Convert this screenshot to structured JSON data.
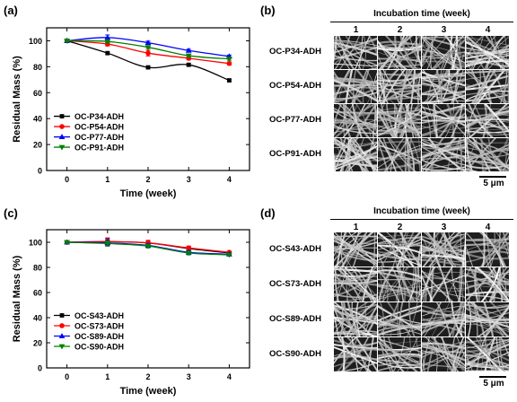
{
  "panels": {
    "a": "(a)",
    "b": "(b)",
    "c": "(c)",
    "d": "(d)"
  },
  "chart_data": [
    {
      "id": "a",
      "type": "line",
      "xlabel": "Time (week)",
      "ylabel": "Residual Mass (%)",
      "xlim": [
        -0.5,
        4.5
      ],
      "ylim": [
        0,
        110
      ],
      "xticks": [
        0,
        1,
        2,
        3,
        4
      ],
      "yticks": [
        0,
        20,
        40,
        60,
        80,
        100
      ],
      "legend_position": "lower-left",
      "series": [
        {
          "name": "OC-P34-ADH",
          "color": "#000000",
          "marker": "square",
          "x": [
            0,
            1,
            2,
            3,
            4
          ],
          "y": [
            100,
            90.5,
            79.5,
            81.5,
            69.5
          ],
          "err": [
            0.8,
            0.8,
            0.8,
            1.0,
            0.8
          ]
        },
        {
          "name": "OC-P54-ADH",
          "color": "#ff0000",
          "marker": "circle",
          "x": [
            0,
            1,
            2,
            3,
            4
          ],
          "y": [
            100,
            97.5,
            90.5,
            86.5,
            82.5
          ],
          "err": [
            0.8,
            1.5,
            2.2,
            1.2,
            1.2
          ]
        },
        {
          "name": "OC-P77-ADH",
          "color": "#0000ff",
          "marker": "triangle",
          "x": [
            0,
            1,
            2,
            3,
            4
          ],
          "y": [
            100,
            102.5,
            98.5,
            92.5,
            88.0
          ],
          "err": [
            0.8,
            2.0,
            1.2,
            1.0,
            1.0
          ]
        },
        {
          "name": "OC-P91-ADH",
          "color": "#008000",
          "marker": "tri-down",
          "x": [
            0,
            1,
            2,
            3,
            4
          ],
          "y": [
            100,
            99.5,
            95.0,
            88.5,
            86.0
          ],
          "err": [
            0.8,
            1.0,
            1.0,
            1.0,
            1.0
          ]
        }
      ]
    },
    {
      "id": "c",
      "type": "line",
      "xlabel": "Time (week)",
      "ylabel": "Residual Mass (%)",
      "xlim": [
        -0.5,
        4.5
      ],
      "ylim": [
        0,
        110
      ],
      "xticks": [
        0,
        1,
        2,
        3,
        4
      ],
      "yticks": [
        0,
        20,
        40,
        60,
        80,
        100
      ],
      "legend_position": "lower-left",
      "series": [
        {
          "name": "OC-S43-ADH",
          "color": "#000000",
          "marker": "square",
          "x": [
            0,
            1,
            2,
            3,
            4
          ],
          "y": [
            100,
            100.5,
            99.5,
            95.0,
            91.5
          ],
          "err": [
            0.8,
            2.5,
            2.0,
            1.5,
            1.0
          ]
        },
        {
          "name": "OC-S73-ADH",
          "color": "#ff0000",
          "marker": "circle",
          "x": [
            0,
            1,
            2,
            3,
            4
          ],
          "y": [
            100,
            100.5,
            99.5,
            95.5,
            92.0
          ],
          "err": [
            0.8,
            3.0,
            2.0,
            1.5,
            1.0
          ]
        },
        {
          "name": "OC-S89-ADH",
          "color": "#0000ff",
          "marker": "triangle",
          "x": [
            0,
            1,
            2,
            3,
            4
          ],
          "y": [
            100,
            99.5,
            97.5,
            92.0,
            90.5
          ],
          "err": [
            0.8,
            2.5,
            1.5,
            1.5,
            1.0
          ]
        },
        {
          "name": "OC-S90-ADH",
          "color": "#008000",
          "marker": "tri-down",
          "x": [
            0,
            1,
            2,
            3,
            4
          ],
          "y": [
            100,
            99.0,
            97.0,
            91.5,
            90.0
          ],
          "err": [
            0.8,
            2.0,
            1.5,
            1.5,
            1.0
          ]
        }
      ]
    }
  ],
  "sem_grids": [
    {
      "id": "b",
      "header": "Incubation time (week)",
      "columns": [
        "1",
        "2",
        "3",
        "4"
      ],
      "rows": [
        "OC-P34-ADH",
        "OC-P54-ADH",
        "OC-P77-ADH",
        "OC-P91-ADH"
      ],
      "scale_bar": "5 μm"
    },
    {
      "id": "d",
      "header": "Incubation time (week)",
      "columns": [
        "1",
        "2",
        "3",
        "4"
      ],
      "rows": [
        "OC-S43-ADH",
        "OC-S73-ADH",
        "OC-S89-ADH",
        "OC-S90-ADH"
      ],
      "scale_bar": "5 μm"
    }
  ]
}
